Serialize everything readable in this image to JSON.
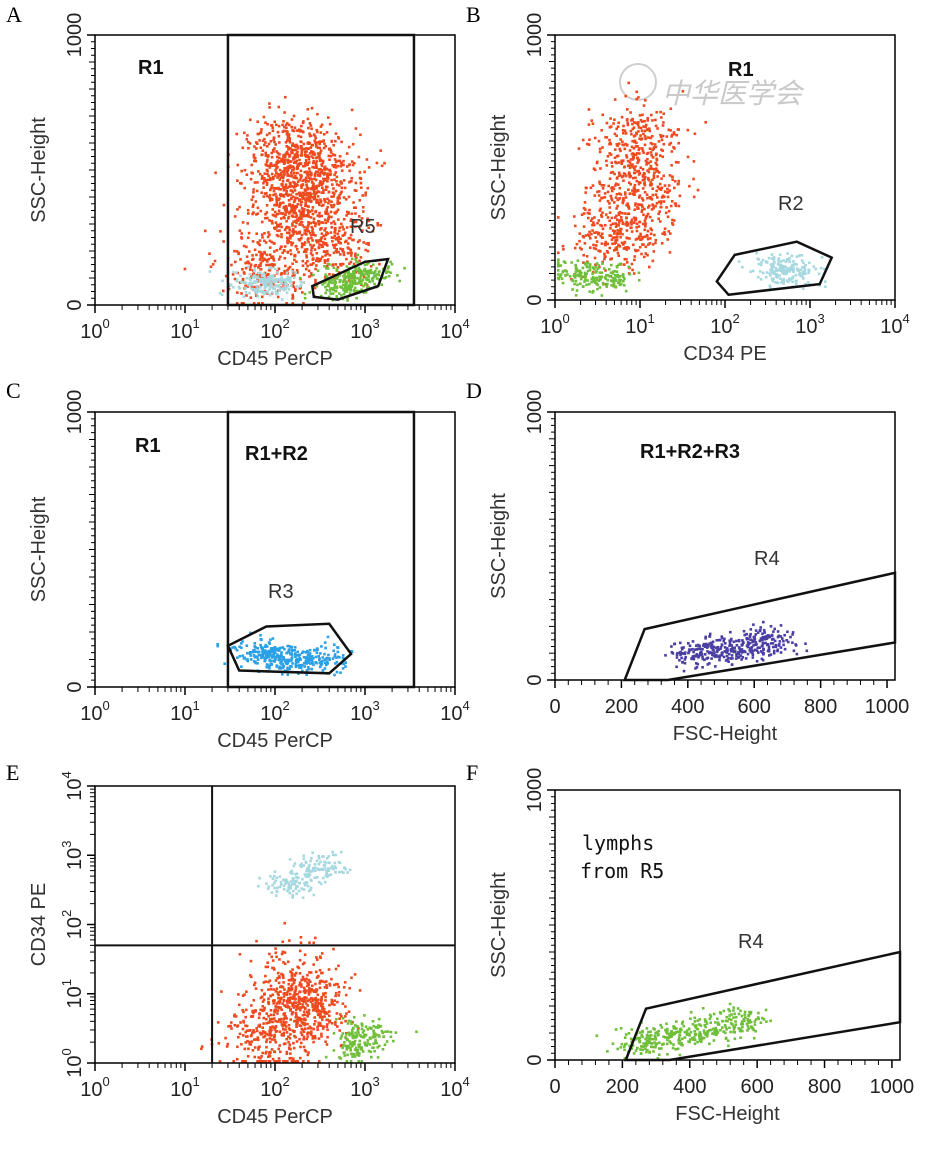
{
  "watermark": "中华医学会",
  "colors": {
    "R1": "#ee4a1f",
    "R2": "#a6d8df",
    "R3": "#2aa0e6",
    "R4": "#4a3ea3",
    "R5": "#6fbf3a"
  },
  "chart_data": [
    {
      "panel": "A",
      "type": "scatter",
      "xlabel": "CD45 PerCP",
      "ylabel": "SSC-Height",
      "x_scale": "log",
      "xlim": [
        1,
        10000
      ],
      "ylim": [
        0,
        1000
      ],
      "x_ticks": [
        {
          "base": "10",
          "exp": "0"
        },
        {
          "base": "10",
          "exp": "1"
        },
        {
          "base": "10",
          "exp": "2"
        },
        {
          "base": "10",
          "exp": "3"
        },
        {
          "base": "10",
          "exp": "4"
        }
      ],
      "y_ticks": [
        "0",
        "1000"
      ],
      "gates": [
        {
          "label": "R1",
          "shape": "rectangle",
          "x": [
            30,
            3500
          ],
          "y": [
            0,
            1000
          ]
        },
        {
          "label": "R5",
          "shape": "polygon",
          "points": [
            [
              260,
              70
            ],
            [
              1000,
              160
            ],
            [
              1800,
              170
            ],
            [
              1400,
              70
            ],
            [
              500,
              20
            ],
            [
              270,
              30
            ]
          ]
        }
      ],
      "populations": [
        {
          "gate": "R1",
          "color": "#ee4a1f",
          "description_points": [
            {
              "x": 150,
              "y": 580
            },
            {
              "x": 130,
              "y": 450
            },
            {
              "x": 180,
              "y": 350
            },
            {
              "x": 400,
              "y": 230
            },
            {
              "x": 80,
              "y": 150
            },
            {
              "x": 300,
              "y": 500
            }
          ]
        },
        {
          "gate": "R2",
          "color": "#a6d8df",
          "description_points": [
            {
              "x": 60,
              "y": 90
            },
            {
              "x": 100,
              "y": 80
            }
          ]
        },
        {
          "gate": "R5",
          "color": "#6fbf3a",
          "description_points": [
            {
              "x": 700,
              "y": 100
            },
            {
              "x": 1000,
              "y": 120
            },
            {
              "x": 500,
              "y": 70
            }
          ]
        }
      ]
    },
    {
      "panel": "B",
      "type": "scatter",
      "xlabel": "CD34 PE",
      "ylabel": "SSC-Height",
      "x_scale": "log",
      "xlim": [
        1,
        10000
      ],
      "ylim": [
        0,
        1000
      ],
      "x_ticks": [
        {
          "base": "10",
          "exp": "0"
        },
        {
          "base": "10",
          "exp": "1"
        },
        {
          "base": "10",
          "exp": "2"
        },
        {
          "base": "10",
          "exp": "3"
        },
        {
          "base": "10",
          "exp": "4"
        }
      ],
      "y_ticks": [
        "0",
        "1000"
      ],
      "gates": [
        {
          "label": "R1",
          "shape": "region"
        },
        {
          "label": "R2",
          "shape": "polygon",
          "points": [
            [
              110,
              20
            ],
            [
              1300,
              60
            ],
            [
              1800,
              160
            ],
            [
              700,
              220
            ],
            [
              130,
              170
            ],
            [
              80,
              70
            ]
          ]
        }
      ],
      "populations": [
        {
          "gate": "R1",
          "color": "#ee4a1f",
          "description_points": [
            {
              "x": 8,
              "y": 600
            },
            {
              "x": 10,
              "y": 400
            },
            {
              "x": 5,
              "y": 250
            }
          ]
        },
        {
          "gate": "R5",
          "color": "#6fbf3a",
          "description_points": [
            {
              "x": 2,
              "y": 110
            },
            {
              "x": 4,
              "y": 90
            }
          ]
        },
        {
          "gate": "R2",
          "color": "#a6d8df",
          "description_points": [
            {
              "x": 400,
              "y": 120
            },
            {
              "x": 600,
              "y": 110
            }
          ]
        }
      ]
    },
    {
      "panel": "C",
      "type": "scatter",
      "xlabel": "CD45 PerCP",
      "ylabel": "SSC-Height",
      "x_scale": "log",
      "xlim": [
        1,
        10000
      ],
      "ylim": [
        0,
        1000
      ],
      "x_ticks": [
        {
          "base": "10",
          "exp": "0"
        },
        {
          "base": "10",
          "exp": "1"
        },
        {
          "base": "10",
          "exp": "2"
        },
        {
          "base": "10",
          "exp": "3"
        },
        {
          "base": "10",
          "exp": "4"
        }
      ],
      "y_ticks": [
        "0",
        "1000"
      ],
      "gate_labels": [
        "R1",
        "R1+R2",
        "R3"
      ],
      "gates": [
        {
          "label": "R1",
          "shape": "rectangle",
          "x": [
            30,
            3500
          ],
          "y": [
            0,
            1000
          ]
        },
        {
          "label": "R3",
          "shape": "polygon",
          "points": [
            [
              40,
              60
            ],
            [
              400,
              50
            ],
            [
              700,
              120
            ],
            [
              400,
              230
            ],
            [
              80,
              220
            ],
            [
              30,
              150
            ]
          ]
        }
      ],
      "populations": [
        {
          "gate": "R3",
          "color": "#2aa0e6",
          "description_points": [
            {
              "x": 100,
              "y": 120
            },
            {
              "x": 150,
              "y": 110
            },
            {
              "x": 60,
              "y": 130
            },
            {
              "x": 300,
              "y": 105
            }
          ]
        }
      ]
    },
    {
      "panel": "D",
      "type": "scatter",
      "xlabel": "FSC-Height",
      "ylabel": "SSC-Height",
      "x_scale": "linear",
      "xlim": [
        0,
        1024
      ],
      "ylim": [
        0,
        1000
      ],
      "x_ticks": [
        "0",
        "200",
        "400",
        "600",
        "800",
        "1000"
      ],
      "y_ticks": [
        "0",
        "1000"
      ],
      "gate_labels": [
        "R1+R2+R3",
        "R4"
      ],
      "gates": [
        {
          "label": "R4",
          "shape": "polygon",
          "points": [
            [
              210,
              0
            ],
            [
              270,
              190
            ],
            [
              1024,
              400
            ],
            [
              1024,
              140
            ],
            [
              340,
              0
            ]
          ]
        }
      ],
      "populations": [
        {
          "gate": "R4",
          "color": "#4a3ea3",
          "description_points": [
            {
              "x": 500,
              "y": 120
            },
            {
              "x": 580,
              "y": 130
            },
            {
              "x": 650,
              "y": 150
            },
            {
              "x": 420,
              "y": 100
            }
          ]
        }
      ]
    },
    {
      "panel": "E",
      "type": "scatter",
      "xlabel": "CD45 PerCP",
      "ylabel": "CD34 PE",
      "x_scale": "log",
      "y_scale": "log",
      "xlim": [
        1,
        10000
      ],
      "ylim": [
        1,
        10000
      ],
      "x_ticks": [
        {
          "base": "10",
          "exp": "0"
        },
        {
          "base": "10",
          "exp": "1"
        },
        {
          "base": "10",
          "exp": "2"
        },
        {
          "base": "10",
          "exp": "3"
        },
        {
          "base": "10",
          "exp": "4"
        }
      ],
      "y_ticks": [
        {
          "base": "10",
          "exp": "0"
        },
        {
          "base": "10",
          "exp": "1"
        },
        {
          "base": "10",
          "exp": "2"
        },
        {
          "base": "10",
          "exp": "3"
        },
        {
          "base": "10",
          "exp": "4"
        }
      ],
      "quadrant_lines": {
        "x": 20,
        "y": 50
      },
      "populations": [
        {
          "gate": "R2",
          "color": "#a6d8df",
          "description_points": [
            {
              "x": 150,
              "y": 400
            },
            {
              "x": 300,
              "y": 700
            }
          ]
        },
        {
          "gate": "R1",
          "color": "#ee4a1f",
          "description_points": [
            {
              "x": 150,
              "y": 12
            },
            {
              "x": 250,
              "y": 6
            },
            {
              "x": 80,
              "y": 3
            }
          ]
        },
        {
          "gate": "R5",
          "color": "#6fbf3a",
          "description_points": [
            {
              "x": 1000,
              "y": 3
            },
            {
              "x": 800,
              "y": 1.8
            }
          ]
        }
      ]
    },
    {
      "panel": "F",
      "type": "scatter",
      "xlabel": "FSC-Height",
      "ylabel": "SSC-Height",
      "x_scale": "linear",
      "xlim": [
        0,
        1024
      ],
      "ylim": [
        0,
        1000
      ],
      "x_ticks": [
        "0",
        "200",
        "400",
        "600",
        "800",
        "1000"
      ],
      "y_ticks": [
        "0",
        "1000"
      ],
      "gate_labels": [
        "lymphs",
        "from R5",
        "R4"
      ],
      "gates": [
        {
          "label": "R4",
          "shape": "polygon",
          "points": [
            [
              210,
              0
            ],
            [
              270,
              190
            ],
            [
              1024,
              400
            ],
            [
              1024,
              140
            ],
            [
              340,
              0
            ]
          ]
        }
      ],
      "populations": [
        {
          "gate": "R5",
          "color": "#6fbf3a",
          "description_points": [
            {
              "x": 350,
              "y": 90
            },
            {
              "x": 450,
              "y": 120
            },
            {
              "x": 550,
              "y": 150
            },
            {
              "x": 250,
              "y": 70
            }
          ]
        }
      ]
    }
  ]
}
